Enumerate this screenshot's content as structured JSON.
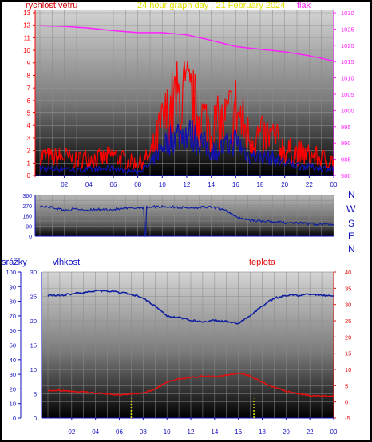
{
  "header": {
    "wind_label": "rychlost větru",
    "title": "24 hour graph day : 21 February 2024",
    "pressure_label": "tlak"
  },
  "colors": {
    "wind_gust": "#ff0000",
    "wind_avg": "#1010b0",
    "pressure": "#ff20ff",
    "direction": "#1020a0",
    "humidity": "#1020a0",
    "temperature": "#e01010",
    "rain": "#e0e000",
    "title": "#e0e000"
  },
  "chart_data": [
    {
      "type": "line",
      "name": "wind-pressure",
      "x_ticks": [
        "02",
        "04",
        "06",
        "08",
        "10",
        "12",
        "14",
        "16",
        "18",
        "20",
        "22",
        "00"
      ],
      "y_left": {
        "label": "rychlost větru",
        "ticks": [
          0,
          1,
          2,
          3,
          4,
          5,
          6,
          7,
          8,
          9,
          10,
          11,
          12,
          13
        ],
        "ylim": [
          0,
          13
        ]
      },
      "y_right": {
        "label": "tlak",
        "ticks": [
          980,
          985,
          990,
          995,
          1000,
          1005,
          1010,
          1015,
          1020,
          1025,
          1030
        ],
        "ylim": [
          980,
          1030
        ]
      },
      "series": [
        {
          "name": "rychlost větru",
          "axis": "left",
          "x_hours": [
            0,
            1,
            2,
            3,
            4,
            5,
            6,
            7,
            8,
            9,
            10,
            11,
            12,
            13,
            14,
            15,
            16,
            17,
            18,
            19,
            20,
            21,
            22,
            23,
            24
          ],
          "values": [
            1.6,
            1.4,
            1.5,
            1.2,
            1.5,
            1.3,
            1.6,
            1.2,
            1.0,
            1.5,
            4.0,
            5.8,
            6.2,
            4.8,
            3.8,
            4.2,
            5.3,
            3.2,
            3.0,
            3.0,
            2.0,
            1.8,
            1.6,
            1.4,
            1.2
          ]
        },
        {
          "axis": "left",
          "x_hours": [
            0,
            1,
            2,
            3,
            4,
            5,
            6,
            7,
            8,
            9,
            10,
            11,
            12,
            13,
            14,
            15,
            16,
            17,
            18,
            19,
            20,
            21,
            22,
            23,
            24
          ],
          "values": [
            0.6,
            0.5,
            0.6,
            0.4,
            0.5,
            0.5,
            0.6,
            0.4,
            0.3,
            0.8,
            2.4,
            3.2,
            3.4,
            2.8,
            2.0,
            2.2,
            2.8,
            1.6,
            1.5,
            1.4,
            1.0,
            0.8,
            0.7,
            0.6,
            0.5
          ]
        },
        {
          "name": "tlak",
          "axis": "right",
          "x_hours": [
            0,
            2,
            4,
            6,
            8,
            10,
            12,
            14,
            16,
            18,
            20,
            22,
            24
          ],
          "values": [
            1026.0,
            1025.8,
            1025.3,
            1024.5,
            1023.9,
            1023.9,
            1023.2,
            1021.5,
            1019.6,
            1018.8,
            1018.0,
            1016.8,
            1015.2
          ]
        }
      ]
    },
    {
      "type": "line",
      "name": "wind-direction",
      "x_ticks": [
        "02",
        "04",
        "06",
        "08",
        "10",
        "12",
        "14",
        "16",
        "18",
        "20",
        "22",
        "00"
      ],
      "y_left": {
        "ticks": [
          0,
          45,
          90,
          135,
          180,
          225,
          270,
          315,
          360
        ],
        "ylim": [
          0,
          360
        ]
      },
      "y_right": {
        "labels": [
          "N",
          "W",
          "S",
          "E",
          "N"
        ]
      },
      "series": [
        {
          "axis": "left",
          "x_hours": [
            0,
            1,
            2,
            3,
            4,
            5,
            6,
            7,
            8,
            9,
            10,
            11,
            12,
            13,
            14,
            15,
            16,
            17,
            18,
            19,
            20,
            21,
            22,
            23,
            24
          ],
          "values": [
            265,
            255,
            230,
            240,
            230,
            235,
            235,
            245,
            250,
            258,
            262,
            255,
            250,
            255,
            255,
            240,
            170,
            145,
            135,
            125,
            120,
            115,
            110,
            105,
            105
          ]
        }
      ]
    },
    {
      "type": "line",
      "name": "humidity-temperature-rain",
      "x_ticks": [
        "02",
        "04",
        "06",
        "08",
        "10",
        "12",
        "14",
        "16",
        "18",
        "20",
        "22",
        "00"
      ],
      "y_rain": {
        "label": "srážky",
        "ticks": [
          0,
          5,
          10,
          15,
          20,
          25,
          30
        ],
        "ylim": [
          0,
          30
        ]
      },
      "y_humidity": {
        "label": "vlhkost",
        "ticks": [
          0,
          10,
          20,
          30,
          40,
          50,
          60,
          70,
          80,
          90,
          100
        ],
        "ylim": [
          0,
          100
        ]
      },
      "y_temperature": {
        "label": "teplota",
        "ticks": [
          -5,
          0,
          5,
          10,
          15,
          20,
          25,
          30,
          35,
          40
        ],
        "ylim": [
          -5,
          40
        ]
      },
      "series": [
        {
          "name": "vlhkost",
          "axis": "humidity",
          "x_hours": [
            0,
            1,
            2,
            3,
            4,
            5,
            6,
            7,
            8,
            9,
            10,
            11,
            12,
            13,
            14,
            15,
            16,
            17,
            18,
            19,
            20,
            21,
            22,
            23,
            24
          ],
          "values": [
            84,
            84,
            85,
            86,
            87,
            87,
            86,
            85,
            82,
            77,
            70,
            69,
            67,
            66,
            67,
            66,
            65,
            70,
            77,
            82,
            84,
            84,
            85,
            84,
            84
          ]
        },
        {
          "name": "teplota",
          "axis": "temperature",
          "x_hours": [
            0,
            1,
            2,
            3,
            4,
            5,
            6,
            7,
            8,
            9,
            10,
            11,
            12,
            13,
            14,
            15,
            16,
            17,
            18,
            19,
            20,
            21,
            22,
            23,
            24
          ],
          "values": [
            3.5,
            3.5,
            3.3,
            3.0,
            2.7,
            2.5,
            2.2,
            2.4,
            2.8,
            4.0,
            6.0,
            7.0,
            7.5,
            8.0,
            7.8,
            8.2,
            9.0,
            8.0,
            6.0,
            4.5,
            3.3,
            2.5,
            2.0,
            1.8,
            1.8
          ]
        },
        {
          "axis": "rain",
          "bars_at_hours": [
            7.0,
            17.3
          ],
          "values": [
            4,
            4
          ]
        }
      ]
    }
  ],
  "rain_label": "srážky",
  "humidity_label": "vlhkost",
  "temperature_label": "teplota",
  "compass_labels": [
    "N",
    "W",
    "S",
    "E",
    "N"
  ]
}
